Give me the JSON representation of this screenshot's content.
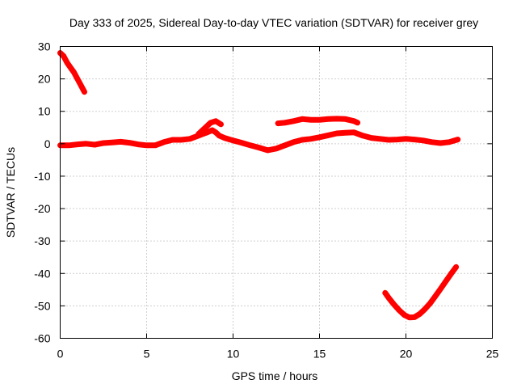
{
  "chart_data": {
    "type": "line",
    "title": "Day 333 of 2025, Sidereal Day-to-day VTEC variation (SDTVAR) for receiver grey",
    "xlabel": "GPS time / hours",
    "ylabel": "SDTVAR / TECUs",
    "xlim": [
      0,
      25
    ],
    "ylim": [
      -60,
      30
    ],
    "xticks": [
      0,
      5,
      10,
      15,
      20,
      25
    ],
    "yticks": [
      -60,
      -50,
      -40,
      -30,
      -20,
      -10,
      0,
      10,
      20,
      30
    ],
    "grid": true,
    "color": "#ff0000",
    "series": [
      {
        "name": "segment-1",
        "x": [
          0.0,
          0.2,
          0.4,
          0.6,
          0.8,
          1.0,
          1.2,
          1.4
        ],
        "y": [
          28,
          27,
          25,
          23.5,
          22,
          20,
          18,
          16
        ]
      },
      {
        "name": "segment-2",
        "x": [
          0.0,
          0.5,
          1.0,
          1.5,
          2.0,
          2.5,
          3.0,
          3.5,
          4.0,
          4.5,
          5.0,
          5.5,
          6.0,
          6.5,
          7.0,
          7.5,
          8.0,
          8.5,
          8.8,
          9.0,
          9.2,
          9.5,
          10.0,
          10.5,
          11.0,
          11.5,
          12.0,
          12.5,
          13.0,
          13.5,
          14.0,
          14.5,
          15.0,
          15.5,
          16.0,
          16.5,
          17.0,
          17.5,
          18.0,
          18.5,
          19.0,
          19.5,
          20.0,
          20.5,
          21.0,
          21.5,
          22.0,
          22.5,
          23.0
        ],
        "y": [
          -0.5,
          -0.5,
          -0.2,
          0,
          -0.3,
          0.2,
          0.4,
          0.6,
          0.3,
          -0.2,
          -0.5,
          -0.5,
          0.5,
          1.2,
          1.2,
          1.5,
          2.5,
          3.5,
          4.2,
          3.5,
          2.5,
          1.8,
          1.0,
          0.3,
          -0.5,
          -1.2,
          -2.0,
          -1.5,
          -0.5,
          0.5,
          1.2,
          1.5,
          2.0,
          2.6,
          3.2,
          3.4,
          3.5,
          2.5,
          1.8,
          1.5,
          1.2,
          1.3,
          1.5,
          1.3,
          1.0,
          0.5,
          0.2,
          0.5,
          1.3
        ]
      },
      {
        "name": "segment-3",
        "x": [
          8.0,
          8.4,
          8.7,
          9.0,
          9.3
        ],
        "y": [
          3.0,
          5.0,
          6.5,
          7.0,
          6.0
        ]
      },
      {
        "name": "segment-4",
        "x": [
          12.6,
          13.0,
          13.5,
          14.0,
          14.5,
          15.0,
          15.5,
          16.0,
          16.5,
          17.0,
          17.2
        ],
        "y": [
          6.3,
          6.5,
          7.0,
          7.6,
          7.4,
          7.4,
          7.6,
          7.7,
          7.6,
          7.0,
          6.5
        ]
      },
      {
        "name": "segment-5",
        "x": [
          18.8,
          19.0,
          19.3,
          19.6,
          19.9,
          20.2,
          20.5,
          20.8,
          21.1,
          21.4,
          21.7,
          22.0,
          22.3,
          22.6,
          22.9
        ],
        "y": [
          -46,
          -47.5,
          -49.5,
          -51.3,
          -52.8,
          -53.6,
          -53.5,
          -52.5,
          -51,
          -49.2,
          -47,
          -44.8,
          -42.5,
          -40.2,
          -38
        ]
      }
    ]
  }
}
